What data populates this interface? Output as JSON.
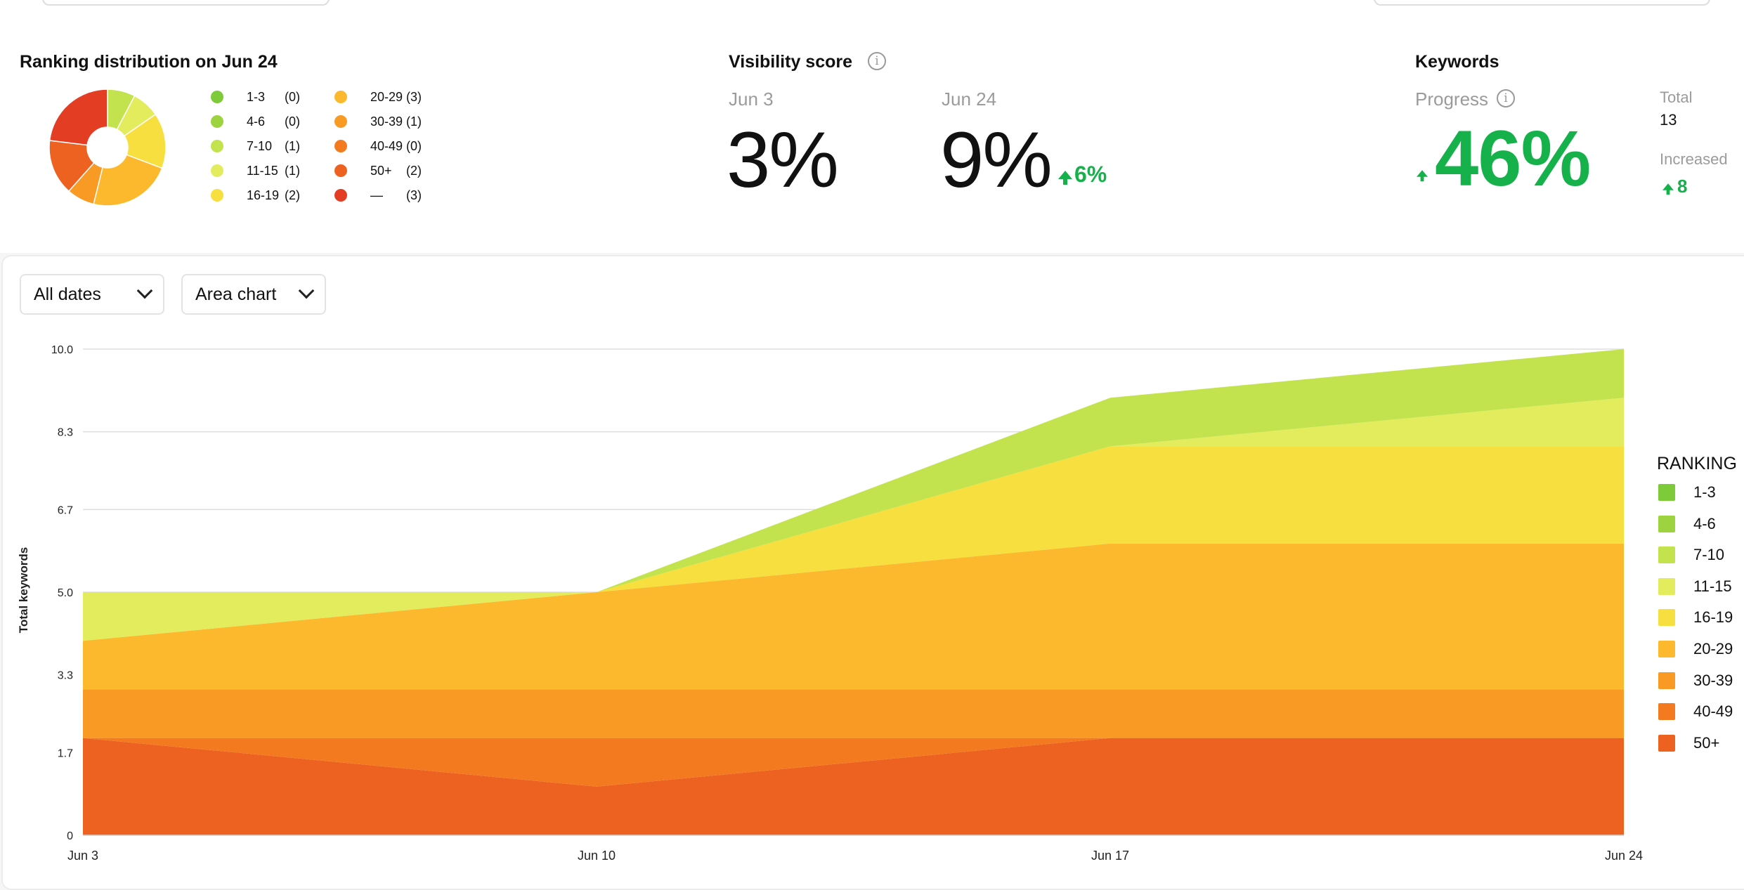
{
  "distribution": {
    "title": "Ranking distribution on Jun 24",
    "legend": [
      {
        "label": "1-3",
        "count": "(0)",
        "value": 0,
        "color": "#7ecb3a"
      },
      {
        "label": "4-6",
        "count": "(0)",
        "value": 0,
        "color": "#9dd33e"
      },
      {
        "label": "7-10",
        "count": "(1)",
        "value": 1,
        "color": "#c2e34d"
      },
      {
        "label": "11-15",
        "count": "(1)",
        "value": 1,
        "color": "#e2ec5c"
      },
      {
        "label": "16-19",
        "count": "(2)",
        "value": 2,
        "color": "#f7df3f"
      },
      {
        "label": "20-29",
        "count": "(3)",
        "value": 3,
        "color": "#fdb92e"
      },
      {
        "label": "30-39",
        "count": "(1)",
        "value": 1,
        "color": "#f99a25"
      },
      {
        "label": "40-49",
        "count": "(0)",
        "value": 0,
        "color": "#f37a1f"
      },
      {
        "label": "50+",
        "count": "(2)",
        "value": 2,
        "color": "#ee6221"
      },
      {
        "label": "—",
        "count": "(3)",
        "value": 3,
        "color": "#e33d24"
      }
    ]
  },
  "visibility": {
    "title": "Visibility score",
    "date_from": "Jun 3",
    "value_from": "3%",
    "date_to": "Jun 24",
    "value_to": "9%",
    "change": "6%"
  },
  "keywords": {
    "title": "Keywords",
    "progress_label": "Progress",
    "progress_value": "46%",
    "total_label": "Total",
    "total_value": "13",
    "increased_label": "Increased",
    "increased_value": "8"
  },
  "controls": {
    "dates": "All dates",
    "chart_type": "Area chart"
  },
  "colors": {
    "positive": "#16b14a"
  },
  "chart_data": {
    "type": "area",
    "stacked": true,
    "categories": [
      "Jun 3",
      "Jun 10",
      "Jun 17",
      "Jun 24"
    ],
    "ylabel": "Total keywords",
    "xlabel": "",
    "yticks": [
      "0",
      "1.7",
      "3.3",
      "5.0",
      "6.7",
      "8.3",
      "10.0"
    ],
    "ylim": [
      0,
      10
    ],
    "grid": true,
    "legend_title": "RANKING",
    "legend_position": "right",
    "series": [
      {
        "name": "1-3",
        "color": "#7ecb3a",
        "values": [
          0,
          0,
          0,
          0
        ]
      },
      {
        "name": "4-6",
        "color": "#9dd33e",
        "values": [
          0,
          0,
          0,
          0
        ]
      },
      {
        "name": "7-10",
        "color": "#c2e34d",
        "values": [
          0,
          0,
          1,
          1
        ]
      },
      {
        "name": "11-15",
        "color": "#e2ec5c",
        "values": [
          1,
          0,
          0,
          1
        ]
      },
      {
        "name": "16-19",
        "color": "#f7df3f",
        "values": [
          0,
          0,
          2,
          2
        ]
      },
      {
        "name": "20-29",
        "color": "#fdb92e",
        "values": [
          1,
          2,
          3,
          3
        ]
      },
      {
        "name": "30-39",
        "color": "#f99a25",
        "values": [
          1,
          1,
          1,
          1
        ]
      },
      {
        "name": "40-49",
        "color": "#f37a1f",
        "values": [
          0,
          1,
          0,
          0
        ]
      },
      {
        "name": "50+",
        "color": "#ee6221",
        "values": [
          2,
          1,
          2,
          2
        ]
      }
    ]
  }
}
